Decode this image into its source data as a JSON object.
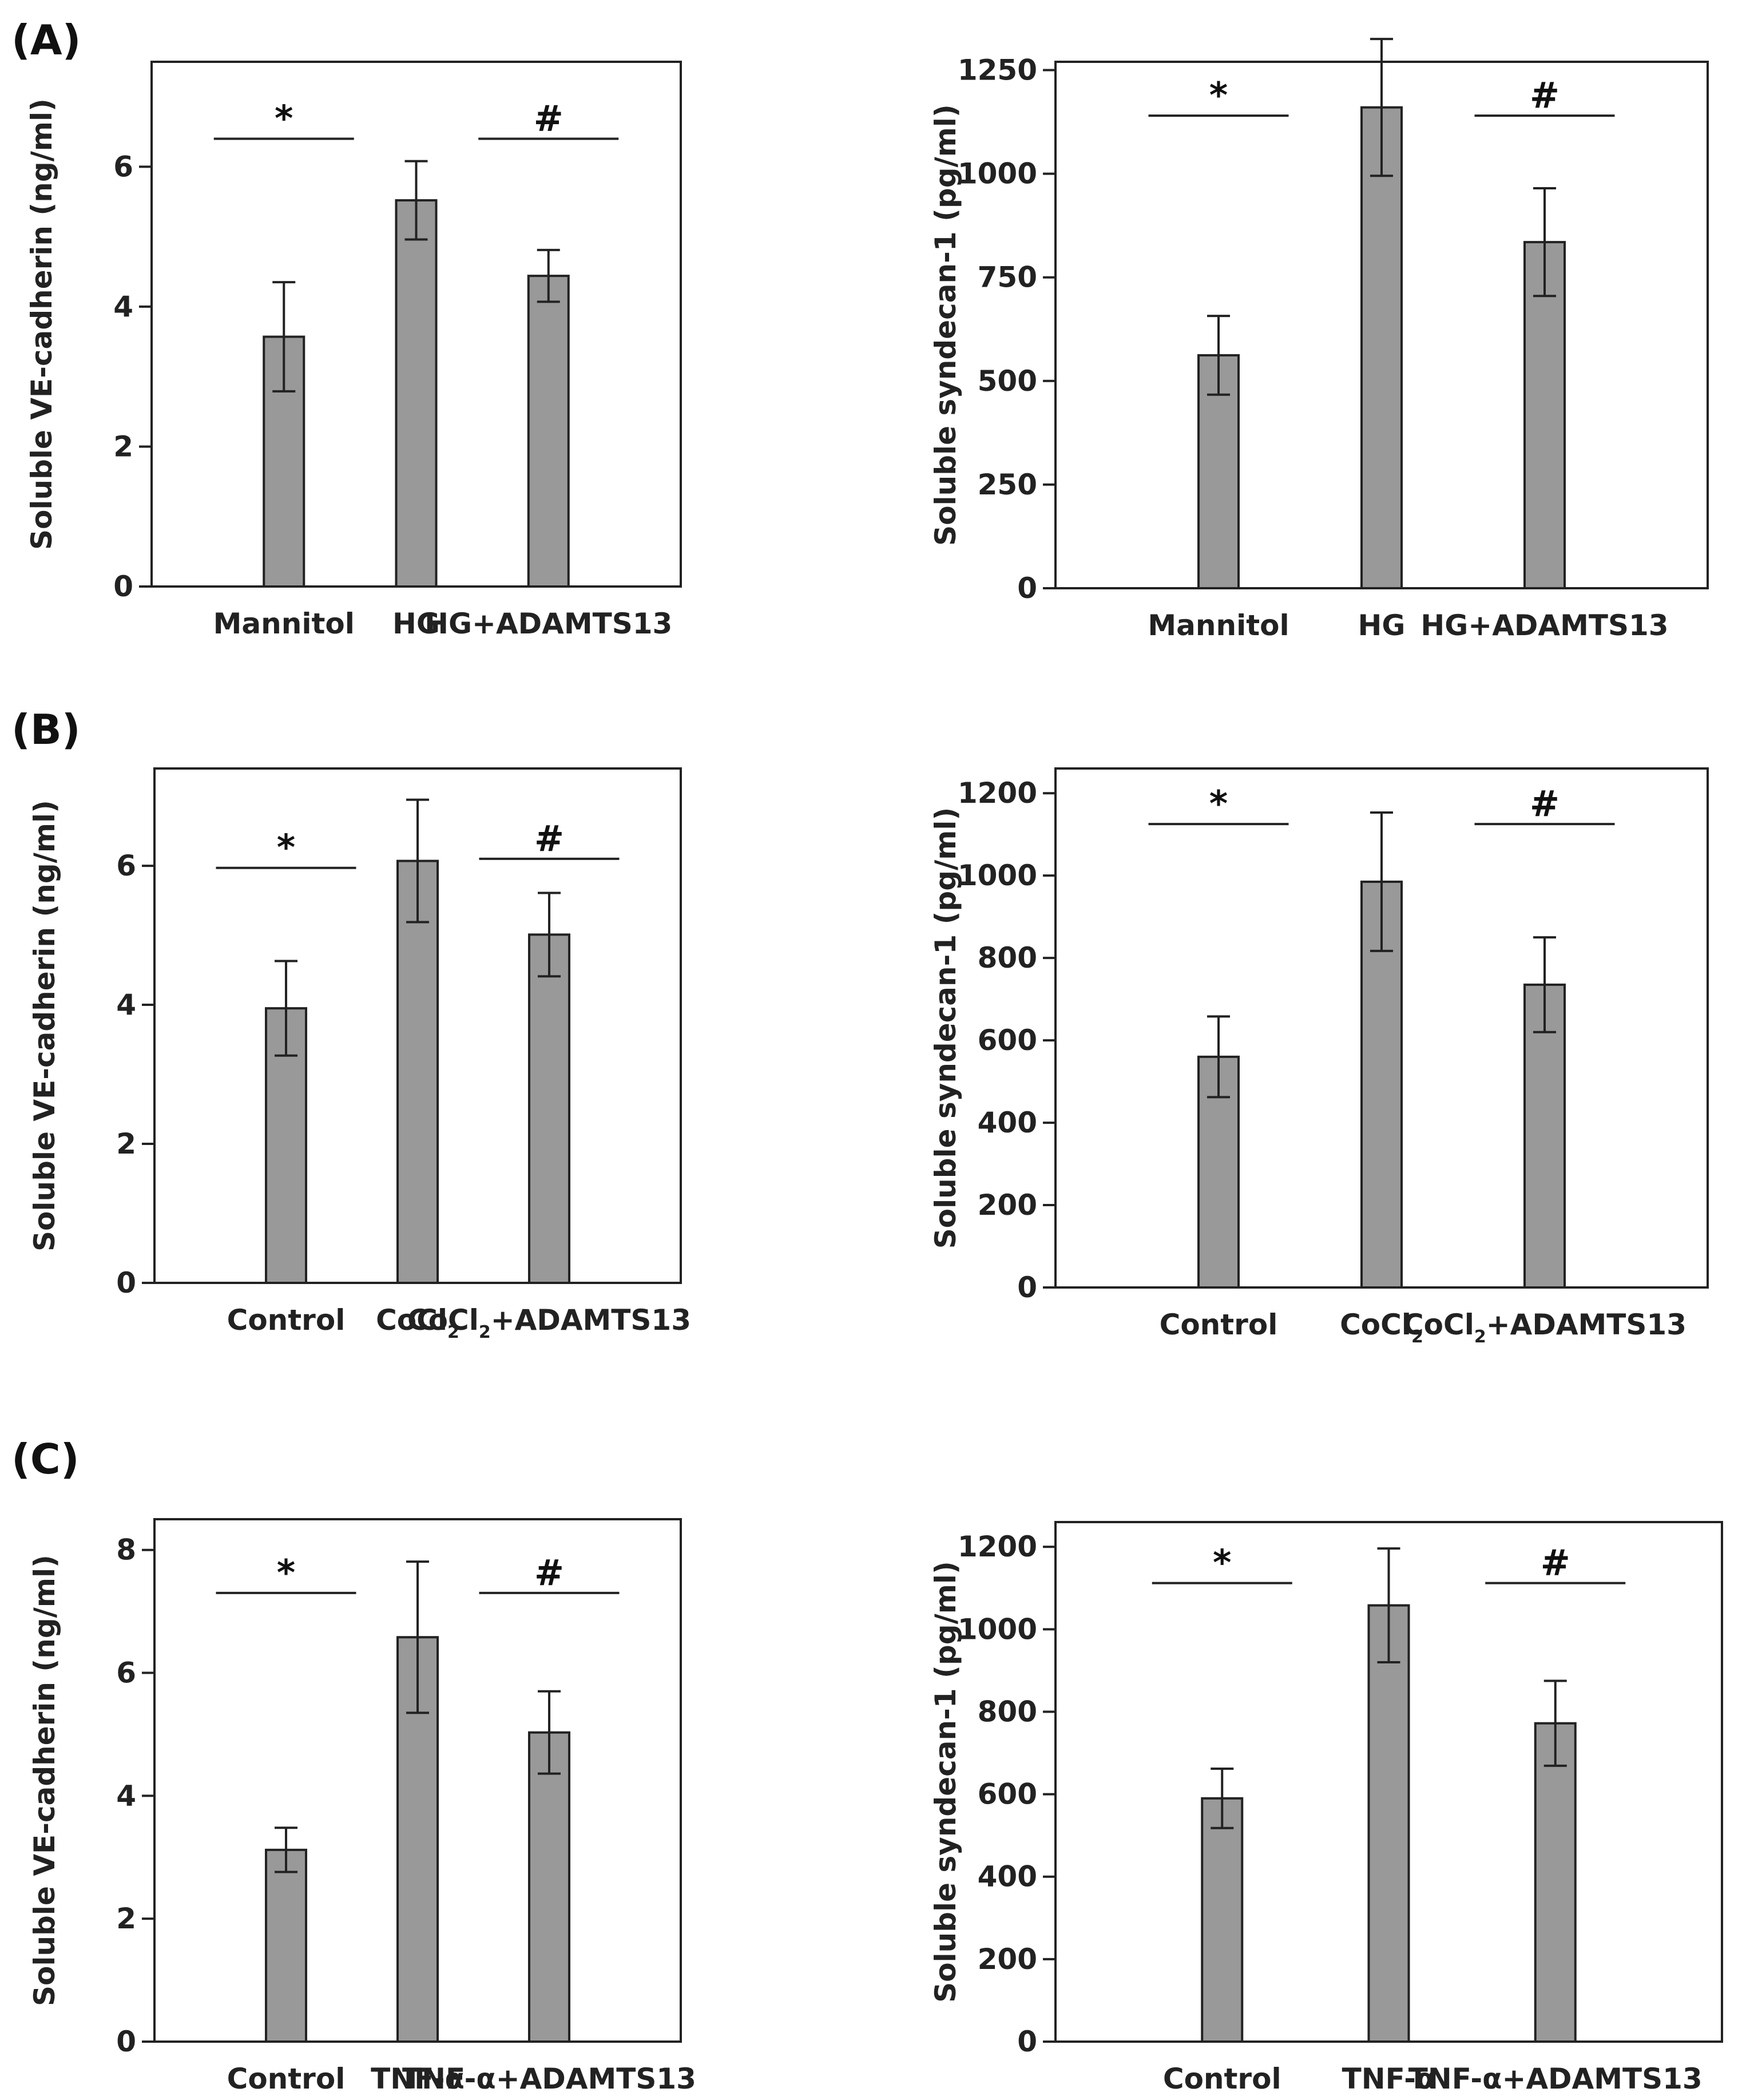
{
  "panel_labels": [
    "(A)",
    "(B)",
    "(C)"
  ],
  "chart_data": [
    {
      "type": "bar",
      "panel": "(A)",
      "ylabel": "Soluble VE-cadherin (ng/ml)",
      "categories": [
        {
          "main": "Mannitol"
        },
        {
          "main": "HG"
        },
        {
          "main": "HG+ADAMTS13"
        }
      ],
      "values": [
        3.57,
        5.52,
        4.44
      ],
      "errors": [
        0.78,
        0.56,
        0.37
      ],
      "ylim": [
        0,
        7.5
      ],
      "yticks": [
        0,
        2,
        4,
        6
      ],
      "significance": [
        {
          "symbol": "*",
          "category": 0,
          "level": 6.4
        },
        {
          "symbol": "#",
          "category": 2,
          "level": 6.4
        }
      ]
    },
    {
      "type": "bar",
      "panel": "(A)",
      "ylabel": "Soluble syndecan-1 (pg/ml)",
      "categories": [
        {
          "main": "Mannitol"
        },
        {
          "main": "HG"
        },
        {
          "main": "HG+ADAMTS13"
        }
      ],
      "values": [
        562,
        1160,
        835
      ],
      "errors": [
        95,
        165,
        130
      ],
      "ylim": [
        0,
        1270
      ],
      "yticks": [
        0,
        250,
        500,
        750,
        1000,
        1250
      ],
      "significance": [
        {
          "symbol": "*",
          "category": 0,
          "level": 1140
        },
        {
          "symbol": "#",
          "category": 2,
          "level": 1140
        }
      ]
    },
    {
      "type": "bar",
      "panel": "(B)",
      "ylabel": "Soluble VE-cadherin (ng/ml)",
      "categories": [
        {
          "main": "Control"
        },
        {
          "main": "CoCl",
          "sub": "2"
        },
        {
          "main": "CoCl",
          "sub": "2",
          "post": "+ADAMTS13"
        }
      ],
      "values": [
        3.95,
        6.07,
        5.01
      ],
      "errors": [
        0.68,
        0.88,
        0.6
      ],
      "ylim": [
        0,
        7.4
      ],
      "yticks": [
        0,
        2,
        4,
        6
      ],
      "significance": [
        {
          "symbol": "*",
          "category": 0,
          "level": 5.97
        },
        {
          "symbol": "#",
          "category": 2,
          "level": 6.1
        }
      ]
    },
    {
      "type": "bar",
      "panel": "(B)",
      "ylabel": "Soluble syndecan-1 (pg/ml)",
      "categories": [
        {
          "main": "Control"
        },
        {
          "main": "CoCl",
          "sub": "2"
        },
        {
          "main": "CoCl",
          "sub": "2",
          "post": "+ADAMTS13"
        }
      ],
      "values": [
        560,
        985,
        735
      ],
      "errors": [
        98,
        168,
        115
      ],
      "ylim": [
        0,
        1260
      ],
      "yticks": [
        0,
        200,
        400,
        600,
        800,
        1000,
        1200
      ],
      "significance": [
        {
          "symbol": "*",
          "category": 0,
          "level": 1125
        },
        {
          "symbol": "#",
          "category": 2,
          "level": 1125
        }
      ]
    },
    {
      "type": "bar",
      "panel": "(C)",
      "ylabel": "Soluble VE-cadherin (ng/ml)",
      "categories": [
        {
          "main": "Control"
        },
        {
          "main": "TNF-α"
        },
        {
          "main": "TNF-α+ADAMTS13"
        }
      ],
      "values": [
        3.12,
        6.58,
        5.03
      ],
      "errors": [
        0.36,
        1.23,
        0.67
      ],
      "ylim": [
        0,
        8.5
      ],
      "yticks": [
        0,
        2,
        4,
        6,
        8
      ],
      "significance": [
        {
          "symbol": "*",
          "category": 0,
          "level": 7.3
        },
        {
          "symbol": "#",
          "category": 2,
          "level": 7.3
        }
      ]
    },
    {
      "type": "bar",
      "panel": "(C)",
      "ylabel": "Soluble syndecan-1 (pg/ml)",
      "categories": [
        {
          "main": "Control"
        },
        {
          "main": "TNF-α"
        },
        {
          "main": "TNF-α+ADAMTS13"
        }
      ],
      "values": [
        590,
        1058,
        772
      ],
      "errors": [
        72,
        138,
        103
      ],
      "ylim": [
        0,
        1260
      ],
      "yticks": [
        0,
        200,
        400,
        600,
        800,
        1000,
        1200
      ],
      "significance": [
        {
          "symbol": "*",
          "category": 0,
          "level": 1112
        },
        {
          "symbol": "#",
          "category": 2,
          "level": 1112
        }
      ]
    }
  ]
}
